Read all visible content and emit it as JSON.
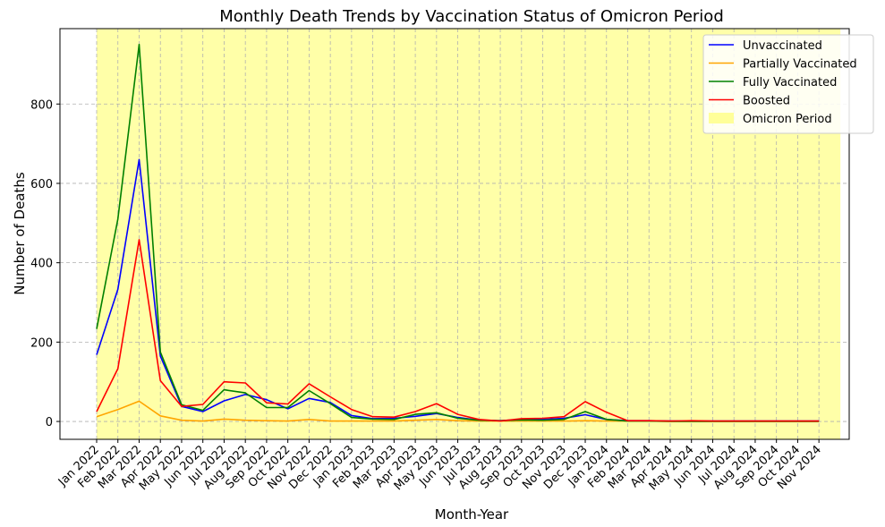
{
  "chart_data": {
    "type": "line",
    "title": "Monthly Death Trends by Vaccination Status of Omicron Period",
    "xlabel": "Month-Year",
    "ylabel": "Number of Deaths",
    "ylim": [
      -45,
      990
    ],
    "yticks": [
      0,
      200,
      400,
      600,
      800
    ],
    "grid": true,
    "legend_position": "top-right",
    "categories": [
      "Jan 2022",
      "Feb 2022",
      "Mar 2022",
      "Apr 2022",
      "May 2022",
      "Jun 2022",
      "Jul 2022",
      "Aug 2022",
      "Sep 2022",
      "Oct 2022",
      "Nov 2022",
      "Dec 2022",
      "Jan 2023",
      "Feb 2023",
      "Mar 2023",
      "Apr 2023",
      "May 2023",
      "Jun 2023",
      "Jul 2023",
      "Aug 2023",
      "Sep 2023",
      "Oct 2023",
      "Nov 2023",
      "Dec 2023",
      "Jan 2024",
      "Feb 2024",
      "Mar 2024",
      "Apr 2024",
      "May 2024",
      "Jun 2024",
      "Jul 2024",
      "Aug 2024",
      "Sep 2024",
      "Oct 2024",
      "Nov 2024"
    ],
    "series": [
      {
        "name": "Unvaccinated",
        "color": "#0000ff",
        "values": [
          168,
          333,
          660,
          165,
          38,
          25,
          52,
          68,
          55,
          32,
          58,
          48,
          15,
          7,
          8,
          13,
          20,
          10,
          3,
          2,
          5,
          5,
          8,
          17,
          5,
          2,
          2,
          1,
          1,
          1,
          1,
          1,
          1,
          1,
          1
        ]
      },
      {
        "name": "Partially Vaccinated",
        "color": "#ffa500",
        "values": [
          12,
          30,
          51,
          14,
          3,
          1,
          6,
          3,
          2,
          1,
          5,
          1,
          1,
          1,
          1,
          3,
          5,
          2,
          1,
          1,
          1,
          1,
          1,
          2,
          1,
          1,
          1,
          0,
          0,
          0,
          0,
          0,
          0,
          0,
          0
        ]
      },
      {
        "name": "Fully Vaccinated",
        "color": "#008000",
        "values": [
          233,
          510,
          950,
          175,
          42,
          28,
          80,
          72,
          35,
          35,
          78,
          45,
          10,
          6,
          5,
          18,
          22,
          8,
          3,
          2,
          4,
          3,
          5,
          25,
          5,
          1,
          1,
          0,
          0,
          0,
          0,
          0,
          0,
          0,
          0
        ]
      },
      {
        "name": "Boosted",
        "color": "#ff0000",
        "values": [
          25,
          133,
          458,
          103,
          38,
          43,
          100,
          97,
          47,
          44,
          95,
          62,
          30,
          12,
          11,
          25,
          45,
          18,
          5,
          1,
          7,
          8,
          12,
          50,
          23,
          2,
          2,
          1,
          2,
          1,
          1,
          1,
          1,
          1,
          1
        ]
      }
    ],
    "shaded_region": {
      "name": "Omicron Period",
      "color": "#ffff99",
      "start": "Jan 2022",
      "end": "Nov 2024"
    }
  }
}
